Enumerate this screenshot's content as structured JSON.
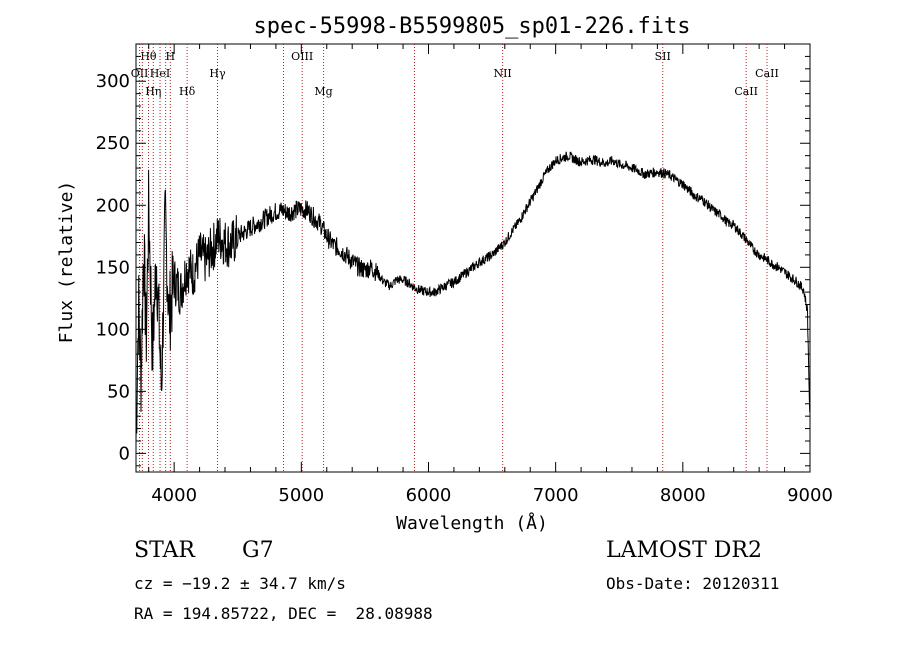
{
  "chart_data": {
    "type": "line",
    "title": "spec-55998-B5599805_sp01-226.fits",
    "xlabel": "Wavelength (Å)",
    "ylabel": "Flux (relative)",
    "xlim": [
      3700,
      9000
    ],
    "ylim": [
      -15,
      330
    ],
    "xticks": [
      4000,
      5000,
      6000,
      7000,
      8000,
      9000
    ],
    "yticks": [
      0,
      50,
      100,
      150,
      200,
      250,
      300
    ],
    "grid": false,
    "line_color": "#000000",
    "marker_color": "#b22222",
    "series": [
      {
        "x": [
          3700,
          3720,
          3740,
          3760,
          3780,
          3800,
          3830,
          3860,
          3900,
          3930,
          3960,
          4000,
          4050,
          4100,
          4150,
          4200,
          4250,
          4300,
          4350,
          4400,
          4450,
          4500,
          4550,
          4600,
          4650,
          4700,
          4750,
          4800,
          4850,
          4900,
          4950,
          5000,
          5050,
          5100,
          5150,
          5200,
          5250,
          5300,
          5350,
          5400,
          5450,
          5500,
          5550,
          5600,
          5650,
          5700,
          5750,
          5800,
          5850,
          5900,
          5950,
          6000,
          6050,
          6100,
          6150,
          6200,
          6250,
          6300,
          6350,
          6400,
          6450,
          6500,
          6550,
          6600,
          6650,
          6700,
          6750,
          6800,
          6850,
          6900,
          6950,
          7000,
          7050,
          7100,
          7150,
          7200,
          7250,
          7300,
          7350,
          7400,
          7450,
          7500,
          7550,
          7600,
          7650,
          7700,
          7750,
          7800,
          7850,
          7900,
          7950,
          8000,
          8050,
          8100,
          8150,
          8200,
          8250,
          8300,
          8350,
          8400,
          8450,
          8500,
          8550,
          8600,
          8650,
          8700,
          8750,
          8800,
          8850,
          8900,
          8950,
          8980,
          9000
        ],
        "y": [
          10,
          120,
          60,
          170,
          90,
          200,
          80,
          160,
          50,
          190,
          110,
          140,
          130,
          150,
          145,
          160,
          155,
          165,
          175,
          170,
          168,
          175,
          178,
          182,
          185,
          188,
          192,
          195,
          196,
          194,
          196,
          197,
          196,
          190,
          185,
          175,
          168,
          165,
          160,
          155,
          150,
          148,
          150,
          145,
          138,
          135,
          140,
          140,
          137,
          133,
          131,
          130,
          130,
          133,
          136,
          138,
          142,
          146,
          150,
          154,
          157,
          160,
          165,
          170,
          178,
          185,
          194,
          203,
          212,
          222,
          230,
          236,
          238,
          240,
          237,
          235,
          236,
          237,
          235,
          234,
          236,
          233,
          232,
          230,
          228,
          225,
          226,
          227,
          226,
          224,
          220,
          217,
          212,
          207,
          205,
          200,
          195,
          192,
          186,
          184,
          178,
          172,
          165,
          160,
          157,
          153,
          150,
          146,
          142,
          138,
          132,
          115,
          20
        ]
      }
    ],
    "lines": [
      {
        "label": "Hθ",
        "wave": 3798,
        "row": 0
      },
      {
        "label": "H",
        "wave": 3970,
        "row": 0
      },
      {
        "label": "OII",
        "wave": 3728,
        "row": 1
      },
      {
        "label": "HeI",
        "wave": 3889,
        "row": 1
      },
      {
        "label": "Hγ",
        "wave": 4341,
        "row": 1
      },
      {
        "label": "Hη",
        "wave": 3836,
        "row": 2
      },
      {
        "label": "Hδ",
        "wave": 4102,
        "row": 2
      },
      {
        "label": "OIII",
        "wave": 5007,
        "row": 0
      },
      {
        "label": "Mg",
        "wave": 5175,
        "row": 2
      },
      {
        "label": "NII",
        "wave": 6583,
        "row": 1
      },
      {
        "label": "SII",
        "wave": 7842,
        "row": 0
      },
      {
        "label": "CaII",
        "wave": 8662,
        "row": 1
      },
      {
        "label": "CaII",
        "wave": 8498,
        "row": 2
      },
      {
        "label": "",
        "wave": 3750,
        "row": 3
      },
      {
        "label": "",
        "wave": 3933,
        "row": 3
      },
      {
        "label": "",
        "wave": 4860,
        "row": 3
      },
      {
        "label": "",
        "wave": 5890,
        "row": 3
      }
    ]
  },
  "info": {
    "obj_class": "STAR",
    "subclass": "G7",
    "survey": "LAMOST DR2",
    "cz": "cz = −19.2 ± 34.7 km/s",
    "obs_date": "Obs-Date: 20120311",
    "ra_dec": "RA = 194.85722, DEC =  28.08988"
  }
}
